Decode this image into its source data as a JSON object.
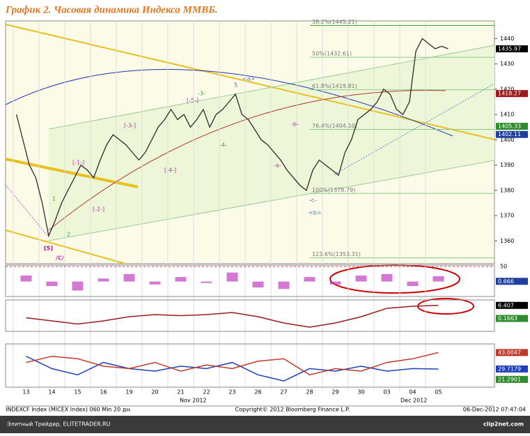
{
  "chart_data": {
    "type": "line",
    "title": "График 2.   Часовая динамика Индекса ММВБ.",
    "categories": [
      "13",
      "14",
      "15",
      "16",
      "19",
      "20",
      "21",
      "22",
      "23",
      "26",
      "27",
      "28",
      "29",
      "30",
      "03",
      "04",
      "05"
    ],
    "months": [
      "Nov 2012",
      "Dec 2012"
    ],
    "values": [
      [
        1410,
        1400,
        1390,
        1385
      ],
      [
        1375,
        1362,
        1368,
        1375
      ],
      [
        1380,
        1385,
        1390,
        1388
      ],
      [
        1385,
        1392,
        1398,
        1402
      ],
      [
        1400,
        1398,
        1395,
        1392
      ],
      [
        1395,
        1400,
        1405,
        1408
      ],
      [
        1412,
        1408,
        1410,
        1405
      ],
      [
        1408,
        1412,
        1405,
        1410
      ],
      [
        1412,
        1415,
        1418,
        1410
      ],
      [
        1408,
        1404,
        1400,
        1398
      ],
      [
        1395,
        1392,
        1388,
        1385
      ],
      [
        1382,
        1380,
        1388,
        1392
      ],
      [
        1390,
        1388,
        1386,
        1395
      ],
      [
        1400,
        1408,
        1410,
        1412
      ],
      [
        1415,
        1420,
        1418,
        1412
      ],
      [
        1410,
        1415,
        1435,
        1440
      ],
      [
        1438,
        1436,
        1437,
        1436
      ]
    ],
    "color": "#2a2a2a",
    "ylim": [
      1351,
      1447
    ],
    "yticks": [
      1360,
      1370,
      1380,
      1390,
      1400,
      1410,
      1420,
      1430,
      1440
    ],
    "price_markers": [
      {
        "value": 1435.97,
        "color": "#000000"
      },
      {
        "value": 1418.27,
        "color": "#9b1c1c"
      },
      {
        "value": 1405.33,
        "color": "#2e8b2e"
      },
      {
        "value": 1402.11,
        "color": "#1f3f9f"
      }
    ],
    "fib_levels": [
      {
        "value": 1445.21,
        "label": "38.2%(1445.21)"
      },
      {
        "value": 1432.61,
        "label": "50%(1432.61)"
      },
      {
        "value": 1419.81,
        "label": "61.8%(1419.81)"
      },
      {
        "value": 1404.1,
        "label": "76.4%(1404.10)"
      },
      {
        "value": 1378.79,
        "label": "100%(1378.79)"
      },
      {
        "value": 1353.31,
        "label": "123.6%(1353.31)"
      }
    ],
    "annotations": [
      "[5]",
      "/C/",
      "<a>",
      "<b>",
      "-a-",
      "-b-",
      "-c-",
      "5",
      "-3-",
      "-4-",
      "[-3-]",
      "[-1-]",
      "[-2-]",
      "[-5-]",
      "[-4-]",
      "1",
      "2"
    ],
    "panels": [
      {
        "ylim": [
          -50,
          55
        ],
        "yticks": [
          50
        ],
        "values": [
          20,
          -15,
          -30,
          10,
          25,
          -10,
          15,
          -5,
          30,
          -20,
          -25,
          15,
          -10,
          20,
          25,
          -15,
          18
        ],
        "color": "#c040c0",
        "markers": [
          {
            "value": 0.666,
            "color": "#1f3f9f"
          }
        ]
      },
      {
        "ylim": [
          -6,
          9
        ],
        "yticks": [],
        "series": [
          {
            "color": "#9b1c1c",
            "values": [
              0.5,
              -1,
              -2.5,
              -1,
              1,
              2,
              1.5,
              2,
              3,
              1,
              -2,
              -4,
              -2,
              1,
              5,
              6,
              6.4
            ]
          }
        ],
        "markers": [
          {
            "value": 6.407,
            "color": "#000000"
          },
          {
            "value": 0.1663,
            "color": "#2e8b2e"
          }
        ]
      },
      {
        "ylim": [
          15,
          50
        ],
        "yticks": [],
        "series": [
          {
            "color": "#1f3fbf",
            "values": [
              40,
              30,
              25,
              35,
              30,
              28,
              32,
              30,
              35,
              25,
              20,
              30,
              28,
              32,
              28,
              30,
              29.7
            ]
          },
          {
            "color": "#c0392b",
            "values": [
              35,
              40,
              38,
              32,
              30,
              35,
              28,
              33,
              30,
              36,
              38,
              25,
              30,
              28,
              35,
              38,
              43
            ]
          }
        ],
        "markers": [
          {
            "value": 43.0047,
            "color": "#c0392b"
          },
          {
            "value": 29.7179,
            "color": "#1f3fbf"
          },
          {
            "value": 21.2901,
            "color": "#2e8b2e"
          }
        ]
      }
    ],
    "footer": {
      "left": "INDEXCF Index (MICEX Index) 060 Min 20 дн.",
      "center": "Copyright© 2012 Bloomberg Finance L.P.",
      "right": "06-Dec-2012 07:47:04"
    },
    "watermark": {
      "left": "Элитный Трейдер, ELITETRADER.RU",
      "right": "clip2net.com"
    }
  }
}
